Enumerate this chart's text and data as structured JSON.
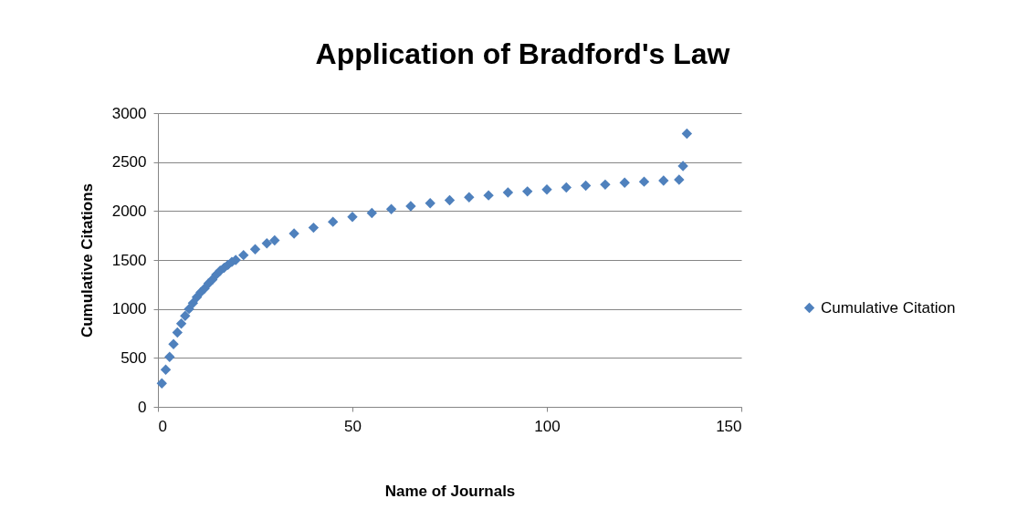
{
  "chart_data": {
    "type": "scatter",
    "title": "Application of Bradford's Law",
    "xlabel": "Name of Journals",
    "ylabel": "Cumulative Citations",
    "series": [
      {
        "name": "Cumulative Citation",
        "color": "#4f81bd",
        "x": [
          1,
          2,
          3,
          4,
          5,
          6,
          7,
          8,
          9,
          10,
          11,
          12,
          13,
          14,
          15,
          16,
          17,
          18,
          19,
          20,
          22,
          25,
          28,
          30,
          35,
          40,
          45,
          50,
          55,
          60,
          65,
          70,
          75,
          80,
          85,
          90,
          95,
          100,
          105,
          110,
          115,
          120,
          125,
          130,
          134,
          135,
          136
        ],
        "values": [
          240,
          380,
          510,
          640,
          760,
          850,
          930,
          1000,
          1060,
          1120,
          1170,
          1210,
          1260,
          1300,
          1350,
          1390,
          1420,
          1450,
          1480,
          1500,
          1550,
          1610,
          1670,
          1700,
          1770,
          1830,
          1890,
          1940,
          1980,
          2020,
          2050,
          2080,
          2110,
          2140,
          2160,
          2190,
          2200,
          2220,
          2240,
          2260,
          2270,
          2290,
          2300,
          2310,
          2320,
          2460,
          2790
        ]
      }
    ],
    "xlim": [
      0,
      150
    ],
    "xticks": [
      0,
      50,
      100,
      150
    ],
    "ylim": [
      0,
      3000
    ],
    "yticks": [
      0,
      500,
      1000,
      1500,
      2000,
      2500,
      3000
    ],
    "grid": "y",
    "legend": "right",
    "marker": "diamond"
  }
}
